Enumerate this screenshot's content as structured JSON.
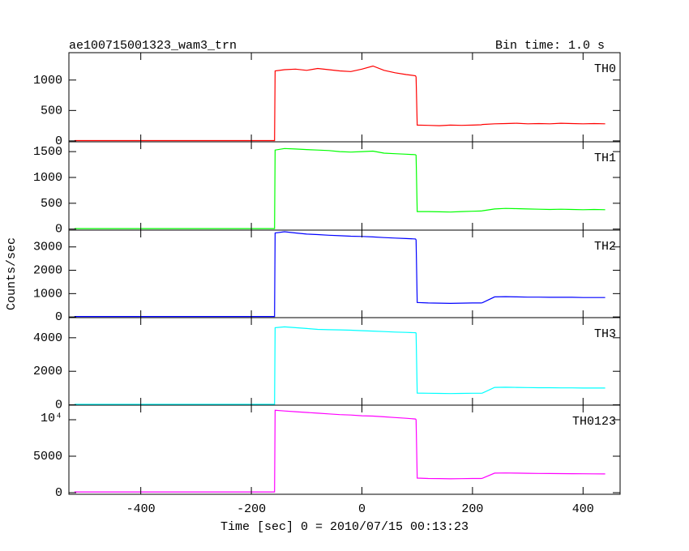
{
  "chart_data": [
    {
      "type": "line",
      "title": "ae100715001323_wam3_trn",
      "subtitle": "Bin time: 1.0 s",
      "x": [
        -520,
        -400,
        -300,
        -200,
        -158,
        -157,
        -140,
        -120,
        -100,
        -80,
        -60,
        -40,
        -20,
        0,
        20,
        40,
        60,
        80,
        97,
        98,
        100,
        120,
        140,
        160,
        180,
        200,
        216,
        218,
        240,
        260,
        280,
        300,
        320,
        340,
        360,
        380,
        400,
        420,
        440
      ],
      "series": [
        {
          "name": "TH0",
          "color": "#ff0000",
          "values": [
            5,
            5,
            5,
            5,
            5,
            1150,
            1170,
            1180,
            1160,
            1190,
            1170,
            1150,
            1140,
            1180,
            1230,
            1160,
            1120,
            1090,
            1070,
            1050,
            260,
            255,
            250,
            260,
            255,
            260,
            265,
            270,
            280,
            285,
            290,
            280,
            285,
            280,
            290,
            285,
            280,
            285,
            280
          ]
        }
      ],
      "xlim": [
        -530,
        467
      ],
      "xticks": [
        -400,
        -200,
        0,
        200,
        400
      ],
      "ylim": [
        -15,
        1450
      ],
      "yticks": [
        0,
        500,
        1000
      ]
    },
    {
      "type": "line",
      "x": [
        -520,
        -400,
        -300,
        -200,
        -158,
        -157,
        -140,
        -120,
        -100,
        -80,
        -60,
        -40,
        -20,
        0,
        20,
        40,
        60,
        80,
        97,
        98,
        100,
        120,
        140,
        160,
        180,
        200,
        216,
        218,
        240,
        260,
        280,
        300,
        320,
        340,
        360,
        380,
        400,
        420,
        440
      ],
      "series": [
        {
          "name": "TH1",
          "color": "#00ff00",
          "values": [
            10,
            10,
            10,
            10,
            10,
            1530,
            1560,
            1550,
            1540,
            1530,
            1520,
            1500,
            1490,
            1500,
            1510,
            1470,
            1460,
            1450,
            1440,
            1430,
            340,
            340,
            335,
            330,
            340,
            345,
            350,
            355,
            390,
            400,
            395,
            390,
            385,
            380,
            385,
            380,
            375,
            380,
            375
          ]
        }
      ],
      "xlim": [
        -530,
        467
      ],
      "xticks": [
        -400,
        -200,
        0,
        200,
        400
      ],
      "ylim": [
        -20,
        1690
      ],
      "yticks": [
        0,
        500,
        1000,
        1500
      ]
    },
    {
      "type": "line",
      "ylabel": "Counts/sec",
      "x": [
        -520,
        -400,
        -300,
        -200,
        -158,
        -157,
        -140,
        -120,
        -100,
        -80,
        -60,
        -40,
        -20,
        0,
        20,
        40,
        60,
        80,
        97,
        98,
        100,
        120,
        140,
        160,
        180,
        200,
        216,
        218,
        240,
        260,
        280,
        300,
        320,
        340,
        360,
        380,
        400,
        420,
        440
      ],
      "series": [
        {
          "name": "TH2",
          "color": "#0000ff",
          "values": [
            20,
            20,
            20,
            20,
            20,
            3600,
            3650,
            3600,
            3550,
            3530,
            3500,
            3480,
            3460,
            3450,
            3430,
            3400,
            3380,
            3360,
            3340,
            3300,
            620,
            600,
            590,
            580,
            590,
            600,
            600,
            610,
            860,
            870,
            860,
            850,
            850,
            840,
            840,
            840,
            830,
            830,
            830
          ]
        }
      ],
      "xlim": [
        -530,
        467
      ],
      "xticks": [
        -400,
        -200,
        0,
        200,
        400
      ],
      "ylim": [
        -30,
        3720
      ],
      "yticks": [
        0,
        1000,
        2000,
        3000
      ]
    },
    {
      "type": "line",
      "x": [
        -520,
        -400,
        -300,
        -200,
        -158,
        -157,
        -140,
        -120,
        -100,
        -80,
        -60,
        -40,
        -20,
        0,
        20,
        40,
        60,
        80,
        97,
        98,
        100,
        120,
        140,
        160,
        180,
        200,
        216,
        218,
        240,
        260,
        280,
        300,
        320,
        340,
        360,
        380,
        400,
        420,
        440
      ],
      "series": [
        {
          "name": "TH3",
          "color": "#00ffff",
          "values": [
            30,
            30,
            30,
            30,
            30,
            4600,
            4650,
            4600,
            4550,
            4500,
            4480,
            4470,
            4450,
            4420,
            4400,
            4370,
            4340,
            4320,
            4300,
            4280,
            700,
            690,
            680,
            670,
            680,
            690,
            690,
            700,
            1040,
            1050,
            1040,
            1030,
            1020,
            1020,
            1010,
            1010,
            1000,
            1000,
            1000
          ]
        }
      ],
      "xlim": [
        -530,
        467
      ],
      "xticks": [
        -400,
        -200,
        0,
        200,
        400
      ],
      "ylim": [
        -20,
        5200
      ],
      "yticks": [
        0,
        2000,
        4000
      ]
    },
    {
      "type": "line",
      "xlabel": "Time [sec] 0 = 2010/07/15 00:13:23",
      "x": [
        -520,
        -400,
        -300,
        -200,
        -158,
        -157,
        -140,
        -120,
        -100,
        -80,
        -60,
        -40,
        -20,
        0,
        20,
        40,
        60,
        80,
        97,
        98,
        100,
        120,
        140,
        160,
        180,
        200,
        216,
        218,
        240,
        260,
        280,
        300,
        320,
        340,
        360,
        380,
        400,
        420,
        440
      ],
      "series": [
        {
          "name": "TH0123",
          "color": "#ff00ff",
          "values": [
            100,
            100,
            100,
            100,
            100,
            11300,
            11200,
            11100,
            11000,
            10900,
            10800,
            10700,
            10650,
            10550,
            10500,
            10400,
            10300,
            10200,
            10100,
            10000,
            2000,
            1950,
            1930,
            1900,
            1920,
            1950,
            1950,
            1980,
            2680,
            2700,
            2680,
            2660,
            2640,
            2620,
            2610,
            2600,
            2590,
            2580,
            2570
          ]
        }
      ],
      "xlim": [
        -530,
        467
      ],
      "xticks": [
        -400,
        -200,
        0,
        200,
        400
      ],
      "ylim": [
        -220,
        12000
      ],
      "yticks": [
        0,
        5000,
        {
          "value": 10000,
          "label": "10⁴"
        }
      ]
    }
  ]
}
